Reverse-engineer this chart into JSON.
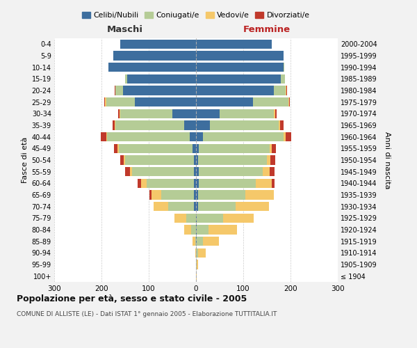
{
  "age_groups": [
    "100+",
    "95-99",
    "90-94",
    "85-89",
    "80-84",
    "75-79",
    "70-74",
    "65-69",
    "60-64",
    "55-59",
    "50-54",
    "45-49",
    "40-44",
    "35-39",
    "30-34",
    "25-29",
    "20-24",
    "15-19",
    "10-14",
    "5-9",
    "0-4"
  ],
  "birth_years": [
    "≤ 1904",
    "1905-1909",
    "1910-1914",
    "1915-1919",
    "1920-1924",
    "1925-1929",
    "1930-1934",
    "1935-1939",
    "1940-1944",
    "1945-1949",
    "1950-1954",
    "1955-1959",
    "1960-1964",
    "1965-1969",
    "1970-1974",
    "1975-1979",
    "1980-1984",
    "1985-1989",
    "1990-1994",
    "1995-1999",
    "2000-2004"
  ],
  "male": {
    "celibi": [
      0,
      0,
      0,
      0,
      0,
      0,
      4,
      4,
      4,
      5,
      5,
      8,
      13,
      25,
      50,
      130,
      155,
      145,
      185,
      175,
      160
    ],
    "coniugati": [
      0,
      0,
      0,
      2,
      10,
      20,
      55,
      70,
      100,
      130,
      145,
      155,
      175,
      145,
      110,
      60,
      15,
      5,
      0,
      0,
      0
    ],
    "vedovi": [
      0,
      0,
      1,
      5,
      15,
      25,
      30,
      20,
      12,
      5,
      3,
      3,
      2,
      2,
      2,
      2,
      1,
      0,
      0,
      0,
      0
    ],
    "divorziati": [
      0,
      0,
      0,
      0,
      0,
      0,
      0,
      5,
      8,
      10,
      8,
      8,
      12,
      5,
      2,
      2,
      1,
      0,
      0,
      0,
      0
    ]
  },
  "female": {
    "nubili": [
      0,
      0,
      0,
      2,
      2,
      2,
      4,
      5,
      6,
      6,
      5,
      6,
      15,
      30,
      50,
      120,
      165,
      180,
      185,
      185,
      160
    ],
    "coniugate": [
      0,
      2,
      5,
      12,
      25,
      55,
      80,
      100,
      120,
      135,
      145,
      150,
      170,
      145,
      115,
      75,
      25,
      8,
      2,
      0,
      0
    ],
    "vedove": [
      1,
      3,
      15,
      35,
      60,
      65,
      70,
      60,
      35,
      15,
      8,
      5,
      4,
      3,
      2,
      2,
      1,
      0,
      0,
      0,
      0
    ],
    "divorziate": [
      0,
      0,
      0,
      0,
      0,
      0,
      0,
      0,
      5,
      10,
      10,
      8,
      12,
      8,
      3,
      2,
      1,
      0,
      0,
      0,
      0
    ]
  },
  "colors": {
    "celibi": "#3d6e9e",
    "coniugati": "#b5cc96",
    "vedovi": "#f5c86a",
    "divorziati": "#c0392b"
  },
  "title": "Popolazione per età, sesso e stato civile - 2005",
  "subtitle": "COMUNE DI ALLISTE (LE) - Dati ISTAT 1° gennaio 2005 - Elaborazione TUTTITALIA.IT",
  "xlabel_left": "Maschi",
  "xlabel_right": "Femmine",
  "ylabel_left": "Fasce di età",
  "ylabel_right": "Anni di nascita",
  "xlim": 300,
  "legend_labels": [
    "Celibi/Nubili",
    "Coniugati/e",
    "Vedovi/e",
    "Divorziati/e"
  ],
  "bg_color": "#f2f2f2",
  "plot_bg": "#ffffff",
  "grid_color": "#cccccc"
}
